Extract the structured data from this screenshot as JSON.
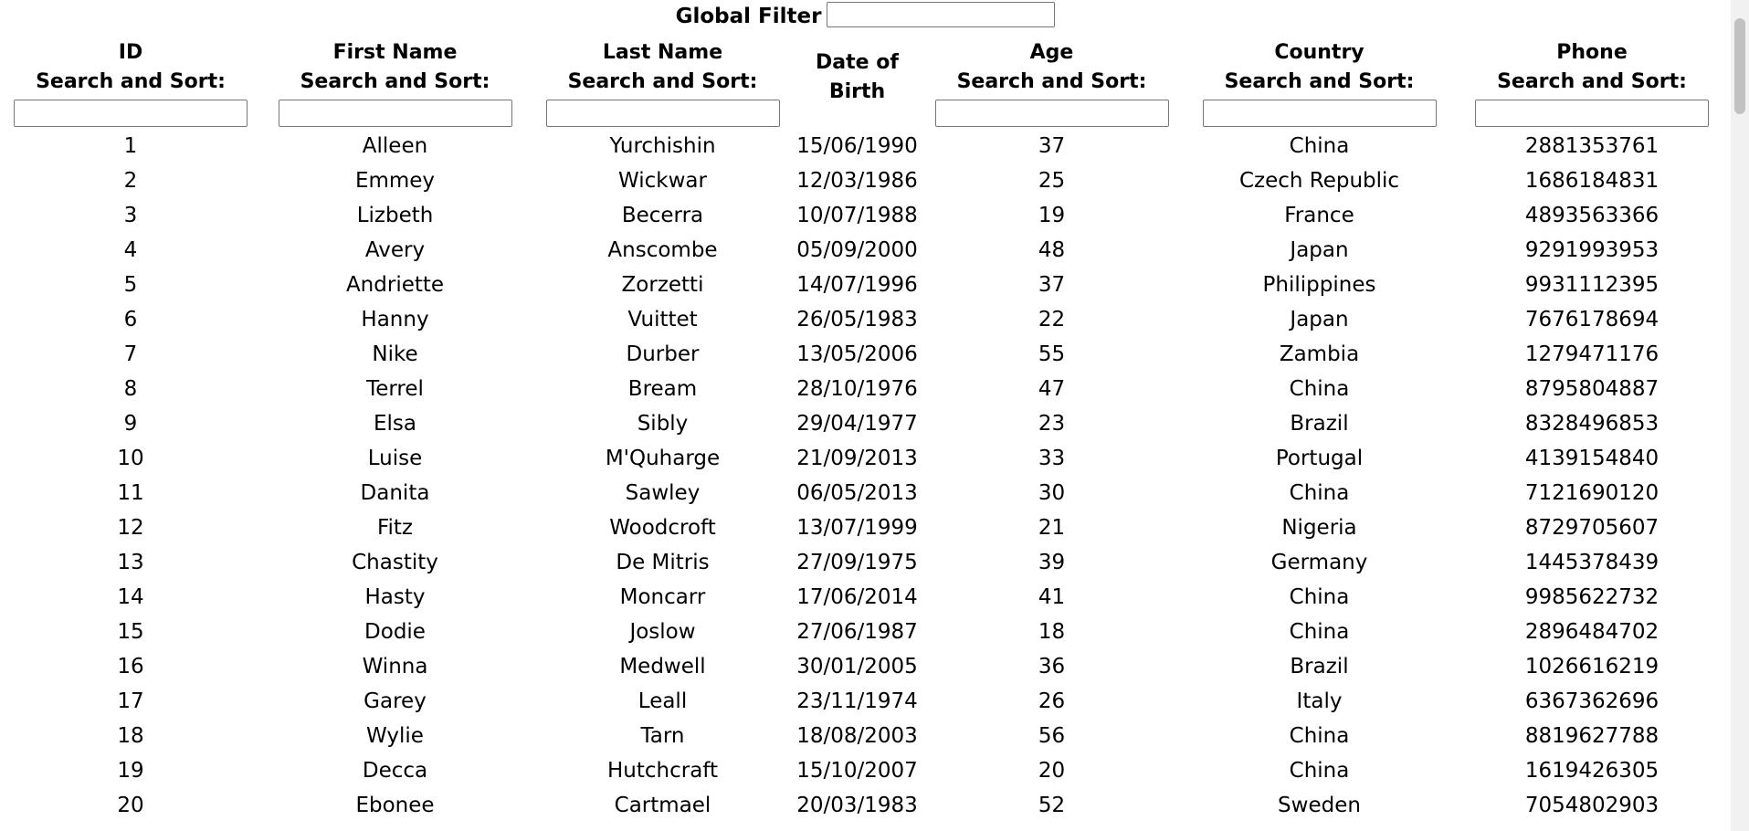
{
  "global_filter": {
    "label": "Global Filter",
    "value": ""
  },
  "columns": [
    {
      "title": "ID",
      "subtitle": "Search and Sort:",
      "filter_value": ""
    },
    {
      "title": "First Name",
      "subtitle": "Search and Sort:",
      "filter_value": ""
    },
    {
      "title": "Last Name",
      "subtitle": "Search and Sort:",
      "filter_value": ""
    },
    {
      "title": "Date of",
      "subtitle": "Birth",
      "filter_value": null
    },
    {
      "title": "Age",
      "subtitle": "Search and Sort:",
      "filter_value": ""
    },
    {
      "title": "Country",
      "subtitle": "Search and Sort:",
      "filter_value": ""
    },
    {
      "title": "Phone",
      "subtitle": "Search and Sort:",
      "filter_value": ""
    }
  ],
  "rows": [
    {
      "id": "1",
      "first": "Alleen",
      "last": "Yurchishin",
      "dob": "15/06/1990",
      "age": "37",
      "country": "China",
      "phone": "2881353761"
    },
    {
      "id": "2",
      "first": "Emmey",
      "last": "Wickwar",
      "dob": "12/03/1986",
      "age": "25",
      "country": "Czech Republic",
      "phone": "1686184831"
    },
    {
      "id": "3",
      "first": "Lizbeth",
      "last": "Becerra",
      "dob": "10/07/1988",
      "age": "19",
      "country": "France",
      "phone": "4893563366"
    },
    {
      "id": "4",
      "first": "Avery",
      "last": "Anscombe",
      "dob": "05/09/2000",
      "age": "48",
      "country": "Japan",
      "phone": "9291993953"
    },
    {
      "id": "5",
      "first": "Andriette",
      "last": "Zorzetti",
      "dob": "14/07/1996",
      "age": "37",
      "country": "Philippines",
      "phone": "9931112395"
    },
    {
      "id": "6",
      "first": "Hanny",
      "last": "Vuittet",
      "dob": "26/05/1983",
      "age": "22",
      "country": "Japan",
      "phone": "7676178694"
    },
    {
      "id": "7",
      "first": "Nike",
      "last": "Durber",
      "dob": "13/05/2006",
      "age": "55",
      "country": "Zambia",
      "phone": "1279471176"
    },
    {
      "id": "8",
      "first": "Terrel",
      "last": "Bream",
      "dob": "28/10/1976",
      "age": "47",
      "country": "China",
      "phone": "8795804887"
    },
    {
      "id": "9",
      "first": "Elsa",
      "last": "Sibly",
      "dob": "29/04/1977",
      "age": "23",
      "country": "Brazil",
      "phone": "8328496853"
    },
    {
      "id": "10",
      "first": "Luise",
      "last": "M'Quharge",
      "dob": "21/09/2013",
      "age": "33",
      "country": "Portugal",
      "phone": "4139154840"
    },
    {
      "id": "11",
      "first": "Danita",
      "last": "Sawley",
      "dob": "06/05/2013",
      "age": "30",
      "country": "China",
      "phone": "7121690120"
    },
    {
      "id": "12",
      "first": "Fitz",
      "last": "Woodcroft",
      "dob": "13/07/1999",
      "age": "21",
      "country": "Nigeria",
      "phone": "8729705607"
    },
    {
      "id": "13",
      "first": "Chastity",
      "last": "De Mitris",
      "dob": "27/09/1975",
      "age": "39",
      "country": "Germany",
      "phone": "1445378439"
    },
    {
      "id": "14",
      "first": "Hasty",
      "last": "Moncarr",
      "dob": "17/06/2014",
      "age": "41",
      "country": "China",
      "phone": "9985622732"
    },
    {
      "id": "15",
      "first": "Dodie",
      "last": "Joslow",
      "dob": "27/06/1987",
      "age": "18",
      "country": "China",
      "phone": "2896484702"
    },
    {
      "id": "16",
      "first": "Winna",
      "last": "Medwell",
      "dob": "30/01/2005",
      "age": "36",
      "country": "Brazil",
      "phone": "1026616219"
    },
    {
      "id": "17",
      "first": "Garey",
      "last": "Leall",
      "dob": "23/11/1974",
      "age": "26",
      "country": "Italy",
      "phone": "6367362696"
    },
    {
      "id": "18",
      "first": "Wylie",
      "last": "Tarn",
      "dob": "18/08/2003",
      "age": "56",
      "country": "China",
      "phone": "8819627788"
    },
    {
      "id": "19",
      "first": "Decca",
      "last": "Hutchcraft",
      "dob": "15/10/2007",
      "age": "20",
      "country": "China",
      "phone": "1619426305"
    },
    {
      "id": "20",
      "first": "Ebonee",
      "last": "Cartmael",
      "dob": "20/03/1983",
      "age": "52",
      "country": "Sweden",
      "phone": "7054802903"
    }
  ]
}
